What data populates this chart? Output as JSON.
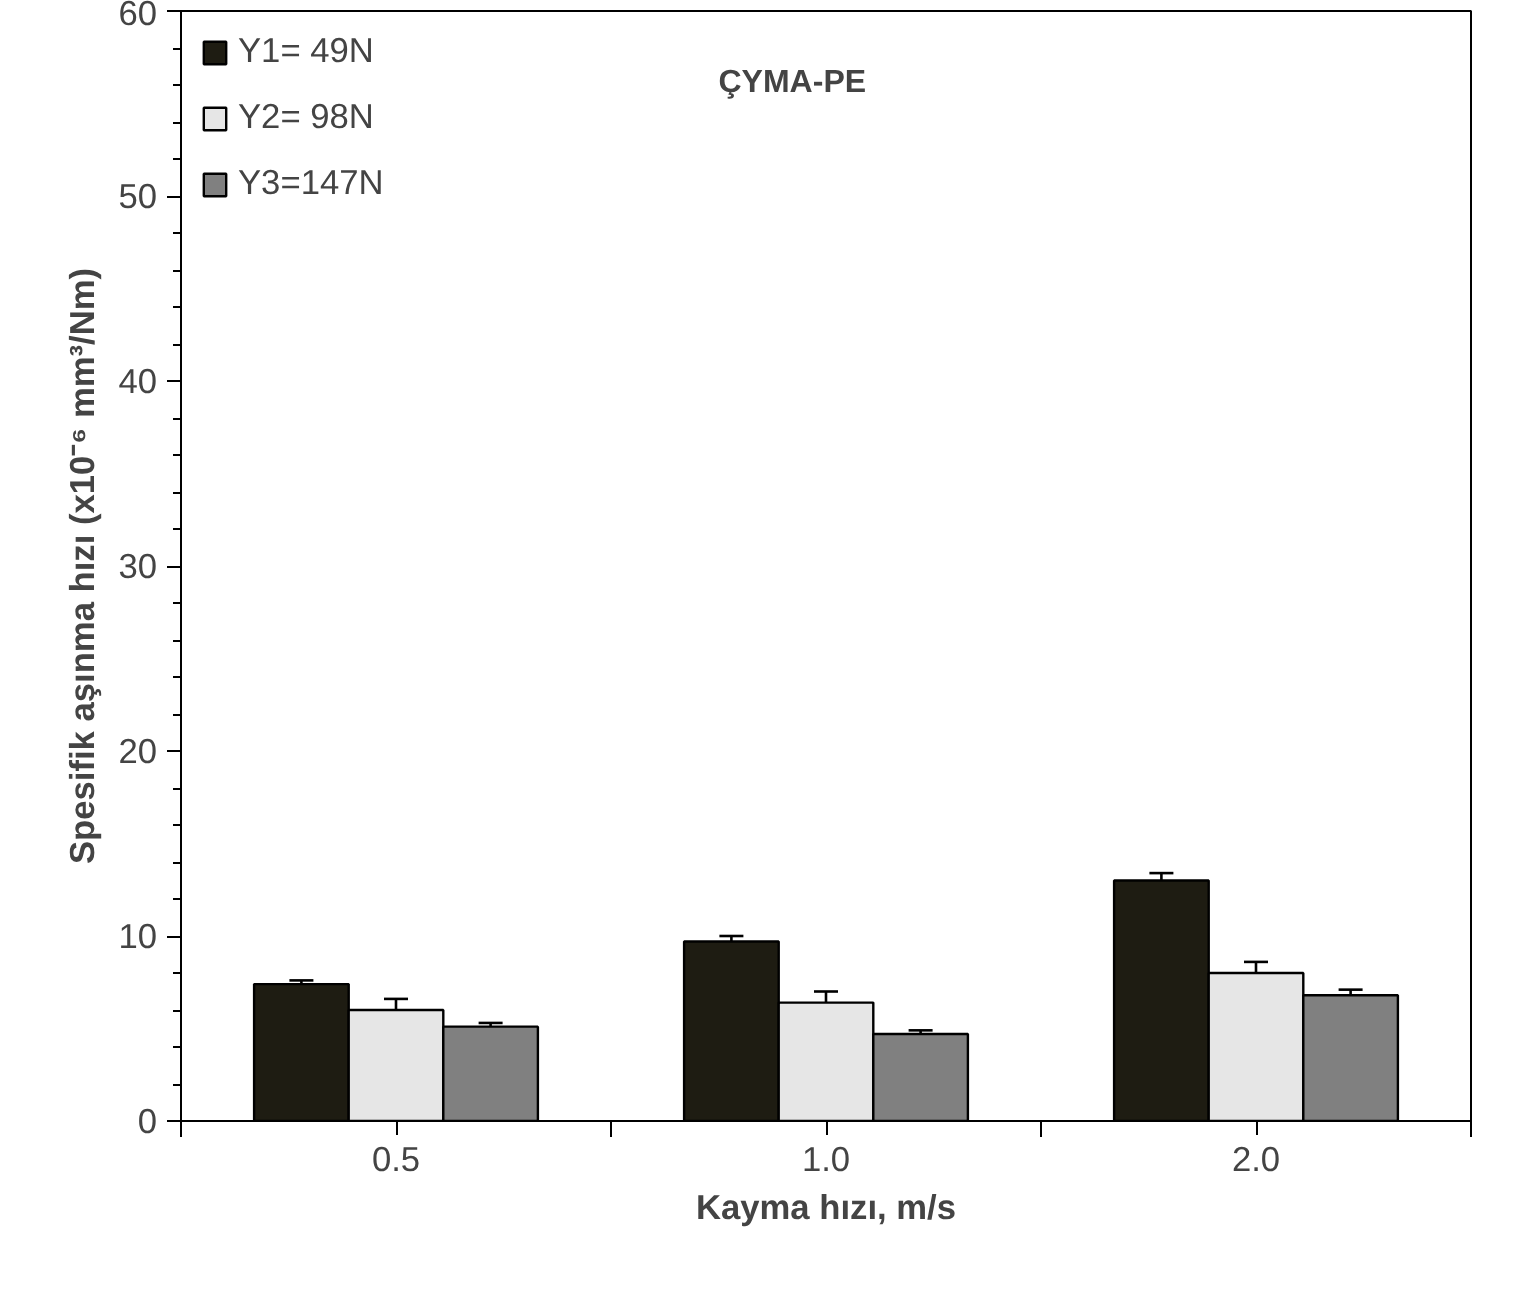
{
  "chart_data": {
    "type": "bar",
    "title": "ÇYMA-PE",
    "xlabel": "Kayma hızı, m/s",
    "ylabel": "Spesifik aşınma hızı (x10⁻⁶ mm³/Nm)",
    "categories": [
      "0.5",
      "1.0",
      "2.0"
    ],
    "series": [
      {
        "name": "Y1= 49N",
        "color": "#1e1c12",
        "values": [
          7.4,
          9.7,
          13.0
        ],
        "errors": [
          0.2,
          0.3,
          0.4
        ]
      },
      {
        "name": "Y2= 98N",
        "color": "#e6e6e6",
        "values": [
          6.0,
          6.4,
          8.0
        ],
        "errors": [
          0.6,
          0.6,
          0.6
        ]
      },
      {
        "name": "Y3=147N",
        "color": "#808080",
        "values": [
          5.1,
          4.7,
          6.8
        ],
        "errors": [
          0.2,
          0.2,
          0.3
        ]
      }
    ],
    "ylim": [
      0,
      60
    ],
    "yticks": [
      0,
      10,
      20,
      30,
      40,
      50,
      60
    ],
    "grid": false,
    "legend": "top left"
  }
}
